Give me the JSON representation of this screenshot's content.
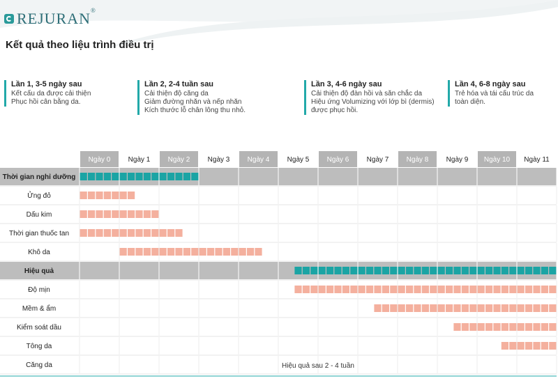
{
  "brand": {
    "name": "REJURAN",
    "reg_mark": "®"
  },
  "page_title": "Kết quả theo liệu trình điều trị",
  "phases": [
    {
      "title": "Lần 1, 3-5 ngày sau",
      "lines": [
        "Kết cấu da được cải thiện",
        "Phục hồi cân bằng da."
      ]
    },
    {
      "title": "Lần 2, 2-4 tuần sau",
      "lines": [
        "Cải thiện độ căng da",
        "Giảm đường nhăn và nếp nhăn",
        "Kích thước lỗ chân lông thu nhỏ."
      ]
    },
    {
      "title": "Lần 3, 4-6 ngày sau",
      "lines": [
        "Cải thiện độ đàn hồi và săn chắc da",
        "Hiệu ứng Volumizing với lớp bì (dermis)",
        "được phục hồi."
      ]
    },
    {
      "title": "Lần 4, 6-8 ngày sau",
      "lines": [
        "Trẻ hóa và tái cấu trúc da",
        "toàn diện."
      ]
    }
  ],
  "colors": {
    "teal": "#1ba4a4",
    "salmon": "#f4b09e",
    "header_gray": "#b4b4b4",
    "section_gray": "#bdbdbd",
    "accent": "#22a9a9"
  },
  "chart_data": {
    "type": "gantt",
    "days": [
      "Ngày 0",
      "Ngày 1",
      "Ngày 2",
      "Ngày 3",
      "Ngày 4",
      "Ngày 5",
      "Ngày 6",
      "Ngày 7",
      "Ngày 8",
      "Ngày 9",
      "Ngày 10",
      "Ngày 11"
    ],
    "shaded_days": [
      0,
      2,
      4,
      6,
      8,
      10
    ],
    "rows": [
      {
        "label": "Thời gian nghỉ dưỡng",
        "section": true,
        "color": "teal",
        "start": 0,
        "end": 3
      },
      {
        "label": "Ửng đỏ",
        "section": false,
        "color": "salmon",
        "start": 0,
        "end": 1.4
      },
      {
        "label": "Dấu kim",
        "section": false,
        "color": "salmon",
        "start": 0,
        "end": 2
      },
      {
        "label": "Thời gian thuốc tan",
        "section": false,
        "color": "salmon",
        "start": 0,
        "end": 2.6
      },
      {
        "label": "Khô da",
        "section": false,
        "color": "salmon",
        "start": 1,
        "end": 4.6
      },
      {
        "label": "Hiệu quả",
        "section": true,
        "color": "teal",
        "start": 5.4,
        "end": 12
      },
      {
        "label": "Độ mịn",
        "section": false,
        "color": "salmon",
        "start": 5.4,
        "end": 12
      },
      {
        "label": "Mềm & ẩm",
        "section": false,
        "color": "salmon",
        "start": 7.4,
        "end": 12
      },
      {
        "label": "Kiểm soát dầu",
        "section": false,
        "color": "salmon",
        "start": 9.4,
        "end": 12
      },
      {
        "label": "Tông da",
        "section": false,
        "color": "salmon",
        "start": 10.6,
        "end": 12
      },
      {
        "label": "Căng da",
        "section": false,
        "color": null,
        "start": null,
        "end": null,
        "note": "Hiệu quả sau 2 - 4 tuần"
      }
    ]
  }
}
